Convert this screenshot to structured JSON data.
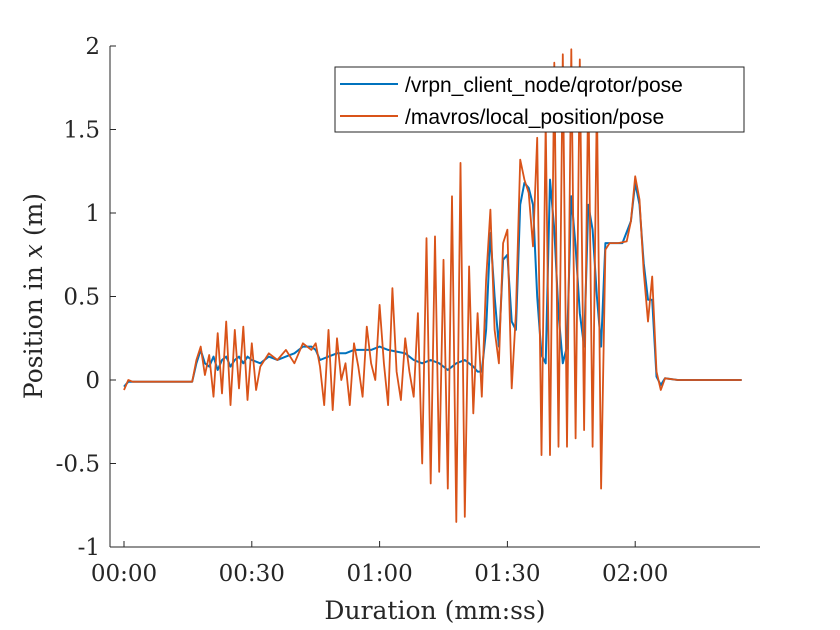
{
  "chart_data": {
    "type": "line",
    "title": "",
    "xlabel": "Duration (mm:ss)",
    "ylabel_prefix": "Position in ",
    "ylabel_var": "x",
    "ylabel_suffix": " (m)",
    "xlim": [
      "00:00",
      "02:25"
    ],
    "ylim": [
      -1,
      2
    ],
    "x_ticks": [
      "00:00",
      "00:30",
      "01:00",
      "01:30",
      "02:00"
    ],
    "y_ticks": [
      "-1",
      "-0.5",
      "0",
      "0.5",
      "1",
      "1.5",
      "2"
    ],
    "grid": false,
    "legend_position": "top-right",
    "series": [
      {
        "name": "/vrpn_client_node/qrotor/pose",
        "color": "#0072BD",
        "points": [
          [
            "00:00",
            -0.04
          ],
          [
            "00:01",
            -0.01
          ],
          [
            "00:10",
            -0.01
          ],
          [
            "00:16",
            -0.01
          ],
          [
            "00:17",
            0.1
          ],
          [
            "00:18",
            0.18
          ],
          [
            "00:19",
            0.1
          ],
          [
            "00:20",
            0.08
          ],
          [
            "00:21",
            0.14
          ],
          [
            "00:22",
            0.06
          ],
          [
            "00:23",
            0.12
          ],
          [
            "00:24",
            0.14
          ],
          [
            "00:25",
            0.08
          ],
          [
            "00:26",
            0.12
          ],
          [
            "00:27",
            0.14
          ],
          [
            "00:28",
            0.1
          ],
          [
            "00:29",
            0.14
          ],
          [
            "00:30",
            0.12
          ],
          [
            "00:32",
            0.1
          ],
          [
            "00:34",
            0.14
          ],
          [
            "00:36",
            0.12
          ],
          [
            "00:38",
            0.14
          ],
          [
            "00:40",
            0.16
          ],
          [
            "00:42",
            0.2
          ],
          [
            "00:44",
            0.2
          ],
          [
            "00:45",
            0.18
          ],
          [
            "00:46",
            0.12
          ],
          [
            "00:48",
            0.14
          ],
          [
            "00:50",
            0.16
          ],
          [
            "00:52",
            0.16
          ],
          [
            "00:54",
            0.18
          ],
          [
            "00:56",
            0.18
          ],
          [
            "00:58",
            0.18
          ],
          [
            "01:00",
            0.2
          ],
          [
            "01:02",
            0.18
          ],
          [
            "01:04",
            0.17
          ],
          [
            "01:06",
            0.16
          ],
          [
            "01:08",
            0.12
          ],
          [
            "01:10",
            0.1
          ],
          [
            "01:12",
            0.12
          ],
          [
            "01:14",
            0.1
          ],
          [
            "01:16",
            0.06
          ],
          [
            "01:18",
            0.1
          ],
          [
            "01:20",
            0.12
          ],
          [
            "01:22",
            0.08
          ],
          [
            "01:23",
            0.05
          ],
          [
            "01:24",
            0.05
          ],
          [
            "01:25",
            0.3
          ],
          [
            "01:26",
            0.88
          ],
          [
            "01:27",
            0.5
          ],
          [
            "01:28",
            0.2
          ],
          [
            "01:29",
            0.72
          ],
          [
            "01:30",
            0.75
          ],
          [
            "01:31",
            0.35
          ],
          [
            "01:32",
            0.3
          ],
          [
            "01:33",
            1.05
          ],
          [
            "01:34",
            1.18
          ],
          [
            "01:35",
            1.15
          ],
          [
            "01:36",
            1.05
          ],
          [
            "01:37",
            0.5
          ],
          [
            "01:38",
            0.15
          ],
          [
            "01:39",
            0.1
          ],
          [
            "01:40",
            1.2
          ],
          [
            "01:41",
            0.9
          ],
          [
            "01:42",
            0.4
          ],
          [
            "01:43",
            0.1
          ],
          [
            "01:44",
            0.2
          ],
          [
            "01:45",
            1.1
          ],
          [
            "01:46",
            0.8
          ],
          [
            "01:47",
            0.4
          ],
          [
            "01:48",
            0.2
          ],
          [
            "01:49",
            1.05
          ],
          [
            "01:50",
            0.9
          ],
          [
            "01:51",
            0.5
          ],
          [
            "01:52",
            0.2
          ],
          [
            "01:53",
            0.82
          ],
          [
            "01:55",
            0.82
          ],
          [
            "01:57",
            0.82
          ],
          [
            "01:59",
            0.95
          ],
          [
            "02:00",
            1.18
          ],
          [
            "02:01",
            1.05
          ],
          [
            "02:02",
            0.7
          ],
          [
            "02:03",
            0.48
          ],
          [
            "02:04",
            0.48
          ],
          [
            "02:05",
            0.02
          ],
          [
            "02:06",
            -0.03
          ],
          [
            "02:07",
            0.01
          ],
          [
            "02:10",
            0.0
          ],
          [
            "02:20",
            0.0
          ],
          [
            "02:25",
            0.0
          ]
        ]
      },
      {
        "name": "/mavros/local_position/pose",
        "color": "#D95319",
        "points": [
          [
            "00:00",
            -0.06
          ],
          [
            "00:01",
            0.0
          ],
          [
            "00:02",
            -0.01
          ],
          [
            "00:10",
            -0.01
          ],
          [
            "00:16",
            -0.01
          ],
          [
            "00:17",
            0.12
          ],
          [
            "00:18",
            0.2
          ],
          [
            "00:19",
            0.03
          ],
          [
            "00:20",
            0.15
          ],
          [
            "00:21",
            -0.1
          ],
          [
            "00:22",
            0.28
          ],
          [
            "00:23",
            -0.08
          ],
          [
            "00:24",
            0.35
          ],
          [
            "00:25",
            -0.15
          ],
          [
            "00:26",
            0.3
          ],
          [
            "00:27",
            -0.05
          ],
          [
            "00:28",
            0.32
          ],
          [
            "00:29",
            -0.12
          ],
          [
            "00:30",
            0.22
          ],
          [
            "00:31",
            -0.06
          ],
          [
            "00:32",
            0.08
          ],
          [
            "00:34",
            0.16
          ],
          [
            "00:36",
            0.12
          ],
          [
            "00:38",
            0.18
          ],
          [
            "00:40",
            0.1
          ],
          [
            "00:42",
            0.22
          ],
          [
            "00:44",
            0.18
          ],
          [
            "00:45",
            0.22
          ],
          [
            "00:46",
            0.08
          ],
          [
            "00:47",
            -0.15
          ],
          [
            "00:48",
            0.3
          ],
          [
            "00:49",
            -0.18
          ],
          [
            "00:50",
            0.25
          ],
          [
            "00:51",
            0.0
          ],
          [
            "00:52",
            0.1
          ],
          [
            "00:53",
            -0.15
          ],
          [
            "00:54",
            0.22
          ],
          [
            "00:55",
            0.08
          ],
          [
            "00:56",
            -0.1
          ],
          [
            "00:57",
            0.32
          ],
          [
            "00:58",
            0.1
          ],
          [
            "00:59",
            0.0
          ],
          [
            "01:00",
            0.45
          ],
          [
            "01:01",
            0.1
          ],
          [
            "01:02",
            -0.15
          ],
          [
            "01:03",
            0.55
          ],
          [
            "01:04",
            0.05
          ],
          [
            "01:05",
            -0.12
          ],
          [
            "01:06",
            0.25
          ],
          [
            "01:07",
            0.05
          ],
          [
            "01:08",
            -0.1
          ],
          [
            "01:09",
            0.4
          ],
          [
            "01:10",
            -0.5
          ],
          [
            "01:11",
            0.85
          ],
          [
            "01:12",
            -0.62
          ],
          [
            "01:13",
            0.86
          ],
          [
            "01:14",
            -0.55
          ],
          [
            "01:15",
            0.72
          ],
          [
            "01:16",
            -0.65
          ],
          [
            "01:17",
            1.1
          ],
          [
            "01:18",
            -0.85
          ],
          [
            "01:19",
            1.3
          ],
          [
            "01:20",
            -0.82
          ],
          [
            "01:21",
            0.68
          ],
          [
            "01:22",
            -0.2
          ],
          [
            "01:23",
            0.4
          ],
          [
            "01:24",
            -0.1
          ],
          [
            "01:25",
            0.6
          ],
          [
            "01:26",
            1.02
          ],
          [
            "01:27",
            0.3
          ],
          [
            "01:28",
            0.1
          ],
          [
            "01:29",
            0.82
          ],
          [
            "01:30",
            0.9
          ],
          [
            "01:31",
            -0.05
          ],
          [
            "01:32",
            0.4
          ],
          [
            "01:33",
            1.32
          ],
          [
            "01:34",
            1.2
          ],
          [
            "01:35",
            1.12
          ],
          [
            "01:36",
            0.8
          ],
          [
            "01:37",
            1.45
          ],
          [
            "01:38",
            -0.45
          ],
          [
            "01:39",
            1.55
          ],
          [
            "01:40",
            -0.45
          ],
          [
            "01:41",
            1.9
          ],
          [
            "01:42",
            -0.4
          ],
          [
            "01:43",
            1.95
          ],
          [
            "01:44",
            -0.4
          ],
          [
            "01:45",
            1.98
          ],
          [
            "01:46",
            -0.35
          ],
          [
            "01:47",
            1.92
          ],
          [
            "01:48",
            -0.3
          ],
          [
            "01:49",
            1.8
          ],
          [
            "01:50",
            -0.4
          ],
          [
            "01:51",
            1.7
          ],
          [
            "01:52",
            -0.65
          ],
          [
            "01:53",
            0.78
          ],
          [
            "01:54",
            0.82
          ],
          [
            "01:56",
            0.82
          ],
          [
            "01:58",
            0.83
          ],
          [
            "01:59",
            0.95
          ],
          [
            "02:00",
            1.22
          ],
          [
            "02:01",
            1.08
          ],
          [
            "02:02",
            0.65
          ],
          [
            "02:03",
            0.35
          ],
          [
            "02:04",
            0.62
          ],
          [
            "02:05",
            0.05
          ],
          [
            "02:06",
            -0.06
          ],
          [
            "02:07",
            0.01
          ],
          [
            "02:10",
            0.0
          ],
          [
            "02:20",
            0.0
          ],
          [
            "02:25",
            0.0
          ]
        ]
      }
    ]
  }
}
